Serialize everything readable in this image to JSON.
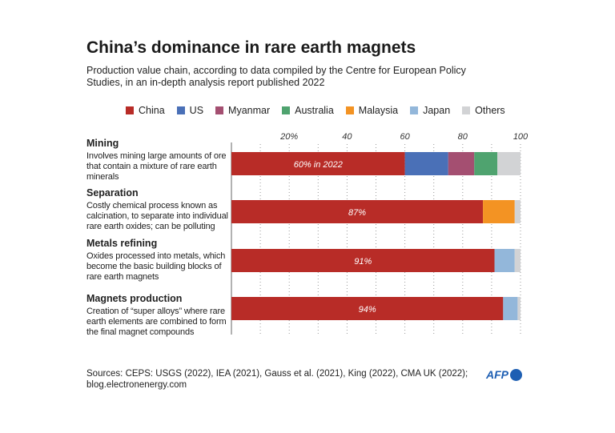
{
  "title": "China’s dominance in rare earth magnets",
  "subtitle": "Production value chain, according to data compiled by the Centre for European Policy Studies, in an in-depth analysis report published 2022",
  "legend": [
    {
      "name": "China",
      "color": "#b82c27"
    },
    {
      "name": "US",
      "color": "#4a70b7"
    },
    {
      "name": "Myanmar",
      "color": "#a44f71"
    },
    {
      "name": "Australia",
      "color": "#4fa36f"
    },
    {
      "name": "Malaysia",
      "color": "#f39323"
    },
    {
      "name": "Japan",
      "color": "#93b7da"
    },
    {
      "name": "Others",
      "color": "#d2d3d5"
    }
  ],
  "chart_data": {
    "type": "bar",
    "orientation": "horizontal",
    "stacked": true,
    "xlim": [
      0,
      100
    ],
    "tick_labels": [
      "20%",
      "40",
      "60",
      "80",
      "100"
    ],
    "ticks": [
      20,
      40,
      60,
      80,
      100
    ],
    "grid": "vertical dotted every 10",
    "legend_position": "top",
    "categories": [
      {
        "name": "Mining",
        "description": "Involves mining large amounts of ore that contain a mixture of rare earth minerals",
        "label": "60% in 2022",
        "segments": [
          {
            "series": "China",
            "value": 60
          },
          {
            "series": "US",
            "value": 15
          },
          {
            "series": "Myanmar",
            "value": 9
          },
          {
            "series": "Australia",
            "value": 8
          },
          {
            "series": "Others",
            "value": 8
          }
        ]
      },
      {
        "name": "Separation",
        "description": "Costly chemical process known as calcination, to separate into individual rare earth oxides; can be polluting",
        "label": "87%",
        "segments": [
          {
            "series": "China",
            "value": 87
          },
          {
            "series": "Malaysia",
            "value": 11
          },
          {
            "series": "Others",
            "value": 2
          }
        ]
      },
      {
        "name": "Metals refining",
        "description": "Oxides processed into metals, which become the basic building blocks of rare earth magnets",
        "label": "91%",
        "segments": [
          {
            "series": "China",
            "value": 91
          },
          {
            "series": "Japan",
            "value": 7
          },
          {
            "series": "Others",
            "value": 2
          }
        ]
      },
      {
        "name": "Magnets production",
        "description": "Creation of “super alloys” where rare earth elements are combined to form the final magnet compounds",
        "label": "94%",
        "segments": [
          {
            "series": "China",
            "value": 94
          },
          {
            "series": "Japan",
            "value": 5
          },
          {
            "series": "Others",
            "value": 1
          }
        ]
      }
    ]
  },
  "sources": "Sources: CEPS: USGS (2022), IEA (2021), Gauss et al. (2021), King (2022), CMA UK (2022); blog.electronenergy.com",
  "logo": "AFP"
}
